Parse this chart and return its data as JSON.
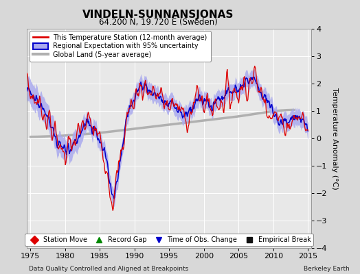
{
  "title": "VINDELN-SUNNANSJONAS",
  "subtitle": "64.200 N, 19.720 E (Sweden)",
  "ylabel": "Temperature Anomaly (°C)",
  "footer_left": "Data Quality Controlled and Aligned at Breakpoints",
  "footer_right": "Berkeley Earth",
  "xlim": [
    1974.5,
    2015.5
  ],
  "ylim": [
    -4,
    4
  ],
  "yticks": [
    -4,
    -3,
    -2,
    -1,
    0,
    1,
    2,
    3,
    4
  ],
  "xticks": [
    1975,
    1980,
    1985,
    1990,
    1995,
    2000,
    2005,
    2010,
    2015
  ],
  "bg_color": "#d8d8d8",
  "plot_bg_color": "#e8e8e8",
  "grid_color": "#ffffff",
  "station_color": "#dd0000",
  "regional_color": "#0000cc",
  "regional_fill_color": "#aaaaee",
  "global_color": "#b0b0b0",
  "legend_items": [
    {
      "label": "This Temperature Station (12-month average)",
      "color": "#dd0000",
      "lw": 1.5
    },
    {
      "label": "Regional Expectation with 95% uncertainty",
      "color": "#0000cc",
      "lw": 1.5
    },
    {
      "label": "Global Land (5-year average)",
      "color": "#b0b0b0",
      "lw": 3
    }
  ],
  "marker_items": [
    {
      "label": "Station Move",
      "color": "#dd0000",
      "marker": "D"
    },
    {
      "label": "Record Gap",
      "color": "#008800",
      "marker": "^"
    },
    {
      "label": "Time of Obs. Change",
      "color": "#0000cc",
      "marker": "v"
    },
    {
      "label": "Empirical Break",
      "color": "#111111",
      "marker": "s"
    }
  ]
}
